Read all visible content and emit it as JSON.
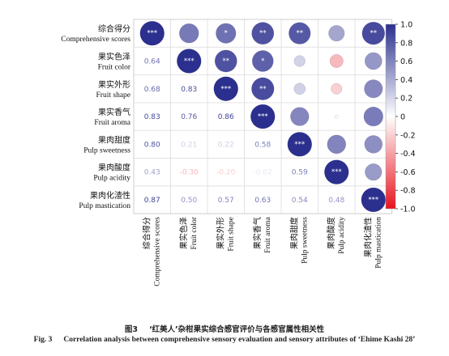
{
  "chart_data": {
    "type": "heatmap",
    "variables": [
      {
        "zh": "综合得分",
        "en": "Comprehensive scores"
      },
      {
        "zh": "果实色泽",
        "en": "Fruit color"
      },
      {
        "zh": "果实外形",
        "en": "Fruit shape"
      },
      {
        "zh": "果实香气",
        "en": "Fruit aroma"
      },
      {
        "zh": "果肉甜度",
        "en": "Pulp sweetness"
      },
      {
        "zh": "果肉酸度",
        "en": "Pulp acidity"
      },
      {
        "zh": "果肉化渣性",
        "en": "Pulp mastication"
      }
    ],
    "lower_values": [
      [
        null,
        null,
        null,
        null,
        null,
        null,
        null
      ],
      [
        0.64,
        null,
        null,
        null,
        null,
        null,
        null
      ],
      [
        0.68,
        0.83,
        null,
        null,
        null,
        null,
        null
      ],
      [
        0.83,
        0.76,
        0.86,
        null,
        null,
        null,
        null
      ],
      [
        0.8,
        0.21,
        0.22,
        0.58,
        null,
        null,
        null
      ],
      [
        0.43,
        -0.3,
        -0.2,
        -0.02,
        0.59,
        null,
        null
      ],
      [
        0.87,
        0.5,
        0.57,
        0.63,
        0.54,
        0.48,
        null
      ]
    ],
    "lower_labels": [
      [
        "",
        "",
        "",
        "",
        "",
        "",
        ""
      ],
      [
        "0.64",
        "",
        "",
        "",
        "",
        "",
        ""
      ],
      [
        "0.68",
        "0.83",
        "",
        "",
        "",
        "",
        ""
      ],
      [
        "0.83",
        "0.76",
        "0.86",
        "",
        "",
        "",
        ""
      ],
      [
        "0.80",
        "0.21",
        "0.22",
        "0.58",
        "",
        "",
        ""
      ],
      [
        "0.43",
        "-0.30",
        "-0.20",
        "-0.02",
        "0.59",
        "",
        ""
      ],
      [
        "0.87",
        "0.50",
        "0.57",
        "0.63",
        "0.54",
        "0.48",
        ""
      ]
    ],
    "upper_values": [
      [
        1.0,
        0.64,
        0.68,
        0.83,
        0.8,
        0.43,
        0.87
      ],
      [
        null,
        1.0,
        0.83,
        0.76,
        0.21,
        -0.3,
        0.5
      ],
      [
        null,
        null,
        1.0,
        0.86,
        0.22,
        -0.2,
        0.57
      ],
      [
        null,
        null,
        null,
        1.0,
        0.58,
        -0.02,
        0.63
      ],
      [
        null,
        null,
        null,
        null,
        1.0,
        0.59,
        0.54
      ],
      [
        null,
        null,
        null,
        null,
        null,
        1.0,
        0.48
      ],
      [
        null,
        null,
        null,
        null,
        null,
        null,
        1.0
      ]
    ],
    "significance": [
      [
        "***",
        "",
        "*",
        "**",
        "**",
        "",
        "**"
      ],
      [
        "",
        "***",
        "**",
        "*",
        "",
        "",
        ""
      ],
      [
        "",
        "",
        "***",
        "**",
        "",
        "",
        ""
      ],
      [
        "",
        "",
        "",
        "***",
        "",
        "",
        ""
      ],
      [
        "",
        "",
        "",
        "",
        "***",
        "",
        ""
      ],
      [
        "",
        "",
        "",
        "",
        "",
        "***",
        ""
      ],
      [
        "",
        "",
        "",
        "",
        "",
        "",
        "***"
      ]
    ],
    "colorbar": {
      "range": [
        -1.0,
        1.0
      ],
      "ticks": [
        "1.0",
        "0.8",
        "0.6",
        "0.4",
        "0.2",
        "0",
        "-0.2",
        "-0.4",
        "-0.6",
        "-0.8",
        "-1.0"
      ],
      "positive_color": "#2b2f8e",
      "neutral_color": "#ffffff",
      "negative_color": "#e8141e"
    }
  },
  "caption": {
    "zh_number": "图3",
    "zh_text": "‘红美人’杂柑果实综合感官评价与各感官属性相关性",
    "en_number": "Fig. 3",
    "en_text": "Correlation analysis between comprehensive sensory evaluation and sensory attributes of ‘Ehime Kashi 28’"
  }
}
